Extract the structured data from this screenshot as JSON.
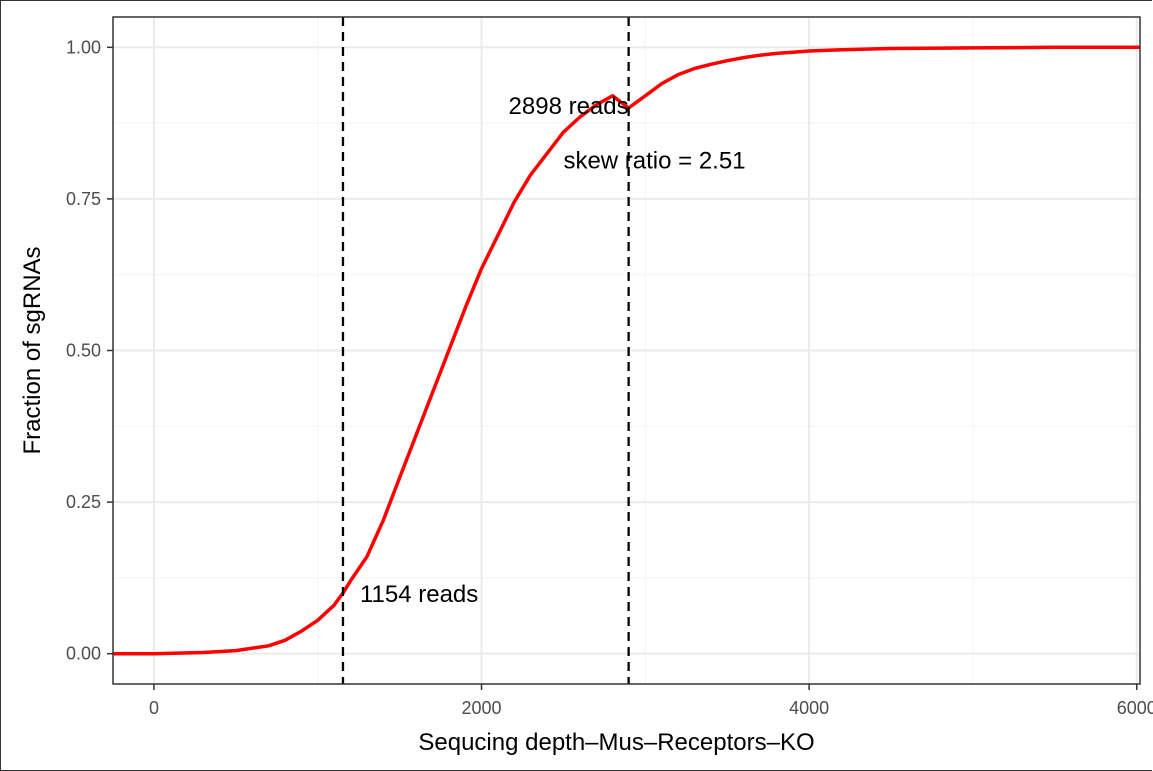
{
  "chart_data": {
    "type": "line",
    "title": "",
    "xlabel": "Sequcing depth–Mus–Receptors–KO",
    "ylabel": "Fraction of sgRNAs",
    "xlim": [
      -250,
      6020
    ],
    "ylim": [
      -0.05,
      1.05
    ],
    "x_ticks": [
      0,
      2000,
      4000,
      6000
    ],
    "x_tick_labels": [
      "0",
      "2000",
      "4000",
      "6000"
    ],
    "y_ticks": [
      0.0,
      0.25,
      0.5,
      0.75,
      1.0
    ],
    "y_tick_labels": [
      "0.00",
      "0.25",
      "0.50",
      "0.75",
      "1.00"
    ],
    "grid": true,
    "series": [
      {
        "color": "#ff0000",
        "x": [
          -250,
          0,
          300,
          500,
          700,
          800,
          900,
          1000,
          1100,
          1154,
          1200,
          1300,
          1400,
          1500,
          1600,
          1700,
          1800,
          1900,
          2000,
          2100,
          2200,
          2300,
          2400,
          2500,
          2600,
          2700,
          2800,
          2898,
          3000,
          3100,
          3200,
          3300,
          3400,
          3500,
          3600,
          3700,
          3800,
          3900,
          4000,
          4200,
          4500,
          5000,
          5500,
          6020
        ],
        "y": [
          0.0,
          0.0,
          0.002,
          0.005,
          0.013,
          0.022,
          0.037,
          0.055,
          0.08,
          0.1,
          0.12,
          0.16,
          0.22,
          0.29,
          0.36,
          0.43,
          0.5,
          0.57,
          0.635,
          0.69,
          0.745,
          0.79,
          0.825,
          0.86,
          0.885,
          0.905,
          0.92,
          0.9,
          0.92,
          0.94,
          0.955,
          0.965,
          0.972,
          0.978,
          0.983,
          0.987,
          0.99,
          0.992,
          0.994,
          0.996,
          0.998,
          0.999,
          1.0,
          1.0
        ]
      }
    ],
    "vlines": [
      {
        "x": 1154,
        "label": "1154 reads"
      },
      {
        "x": 2898,
        "label": "2898 reads"
      }
    ],
    "annotations": [
      {
        "text": "skew ratio = 2.51",
        "x": 2500,
        "y": 0.8
      }
    ]
  }
}
